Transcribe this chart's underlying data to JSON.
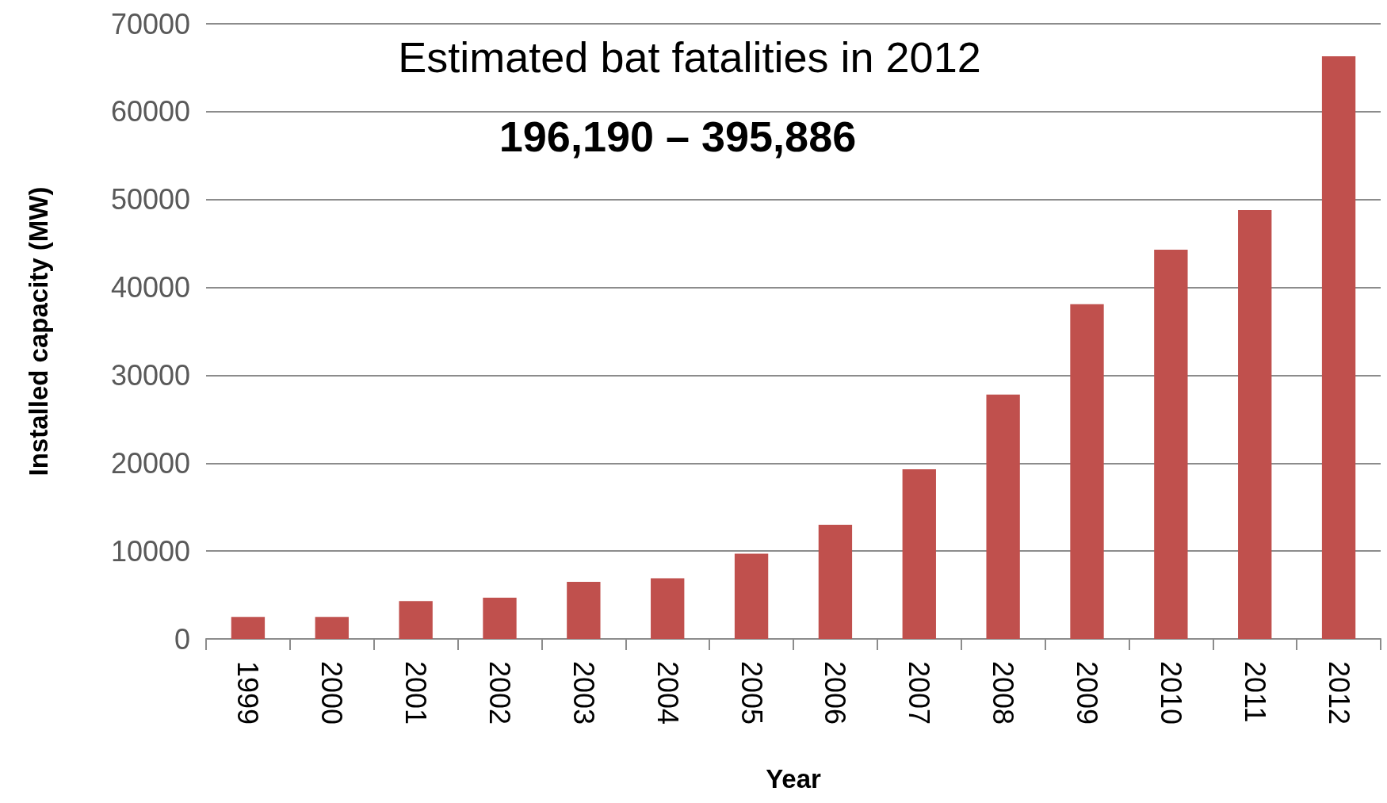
{
  "chart_data": {
    "type": "bar",
    "title": "Estimated bat fatalities in 2012",
    "subtitle": "196,190 – 395,886",
    "xlabel": "Year",
    "ylabel": "Installed capacity (MW)",
    "categories": [
      "1999",
      "2000",
      "2001",
      "2002",
      "2003",
      "2004",
      "2005",
      "2006",
      "2007",
      "2008",
      "2009",
      "2010",
      "2011",
      "2012"
    ],
    "values": [
      2500,
      2500,
      4300,
      4700,
      6500,
      6900,
      9700,
      13000,
      19300,
      27800,
      38100,
      44300,
      48800,
      66300
    ],
    "color": "#c0504d",
    "ylim": [
      0,
      70000
    ],
    "yticks": [
      0,
      10000,
      20000,
      30000,
      40000,
      50000,
      60000,
      70000
    ],
    "grid": "y"
  }
}
